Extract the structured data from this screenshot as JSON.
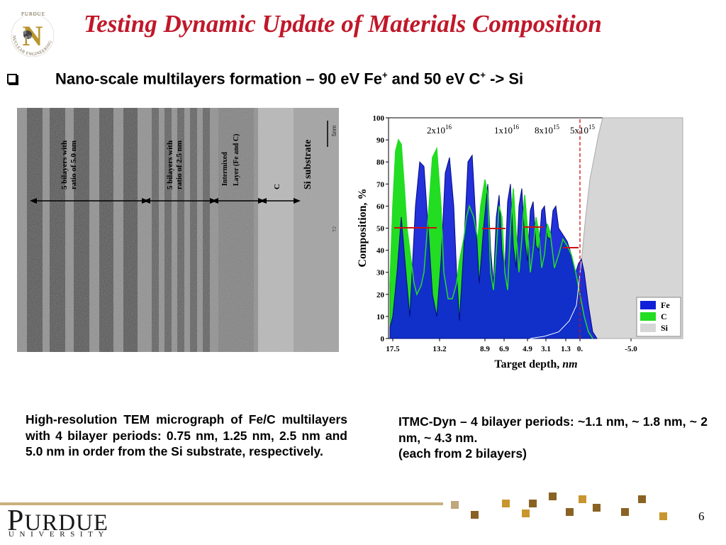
{
  "slide": {
    "title": "Testing Dynamic Update of Materials Composition",
    "bullet_prefix": "Nano-scale multilayers formation – 90 eV Fe",
    "bullet_sup1": "+",
    "bullet_mid": " and 50 eV C",
    "bullet_sup2": "+",
    "bullet_suffix": " -> Si",
    "page_number": "6"
  },
  "logo": {
    "top_text": "PURDUE",
    "arc_text": "NUCLEAR ENGINEERING",
    "letter": "N"
  },
  "tem": {
    "label_5nm_ratio": [
      "5 bilayers with",
      "ratio of 5.0 nm"
    ],
    "label_25nm_ratio": [
      "5 bilayers with",
      "ratio of 2.5 nm"
    ],
    "label_intermixed": [
      "Intermixed",
      "Layer (Fe and C)"
    ],
    "label_c": "C",
    "label_si": "Si substrate",
    "scale_label": "5nm",
    "t2_label": "T2"
  },
  "chart_data": {
    "type": "area",
    "xlabel": "Target depth,",
    "xlabel_unit": "nm",
    "ylabel": "Composition, %",
    "ylim": [
      0,
      100
    ],
    "yticks": [
      "0",
      "10",
      "20",
      "30",
      "40",
      "50",
      "60",
      "70",
      "80",
      "90",
      "100"
    ],
    "xticks": [
      "17.5",
      "13.2",
      "8.9",
      "6.9",
      "4.9",
      "3.1",
      "1.3",
      "0.",
      "-5.0"
    ],
    "fluence_annotations": [
      {
        "base": "2x10",
        "exp": "16"
      },
      {
        "base": "1x10",
        "exp": "16"
      },
      {
        "base": "8x10",
        "exp": "15"
      },
      {
        "base": "5x10",
        "exp": "15"
      }
    ],
    "legend_position": "bottom-right",
    "series": [
      {
        "name": "Fe",
        "color": "#1020d8"
      },
      {
        "name": "C",
        "color": "#22dd22"
      },
      {
        "name": "Si",
        "color": "#d6d6d6"
      }
    ]
  },
  "captions": {
    "left": "High-resolution TEM micrograph of Fe/C multilayers with 4 bilayer periods: 0.75 nm, 1.25 nm, 2.5 nm and 5.0 nm in order from the Si substrate, respectively.",
    "right_line1": "ITMC-Dyn – 4 bilayer periods: ~1.1 nm, ~ 1.8 nm, ~ 2 nm, ~ 4.3 nm.",
    "right_line2": "(each from 2 bilayers)"
  },
  "footer": {
    "purdue_cap": "P",
    "purdue_rest": "URDUE",
    "university": "UNIVERSITY"
  },
  "colors": {
    "title": "#c0182a",
    "footer_line": "#c9b07c",
    "square_gold": "#c8962e",
    "square_brown": "#8a6224",
    "square_tan": "#bfa77e"
  }
}
